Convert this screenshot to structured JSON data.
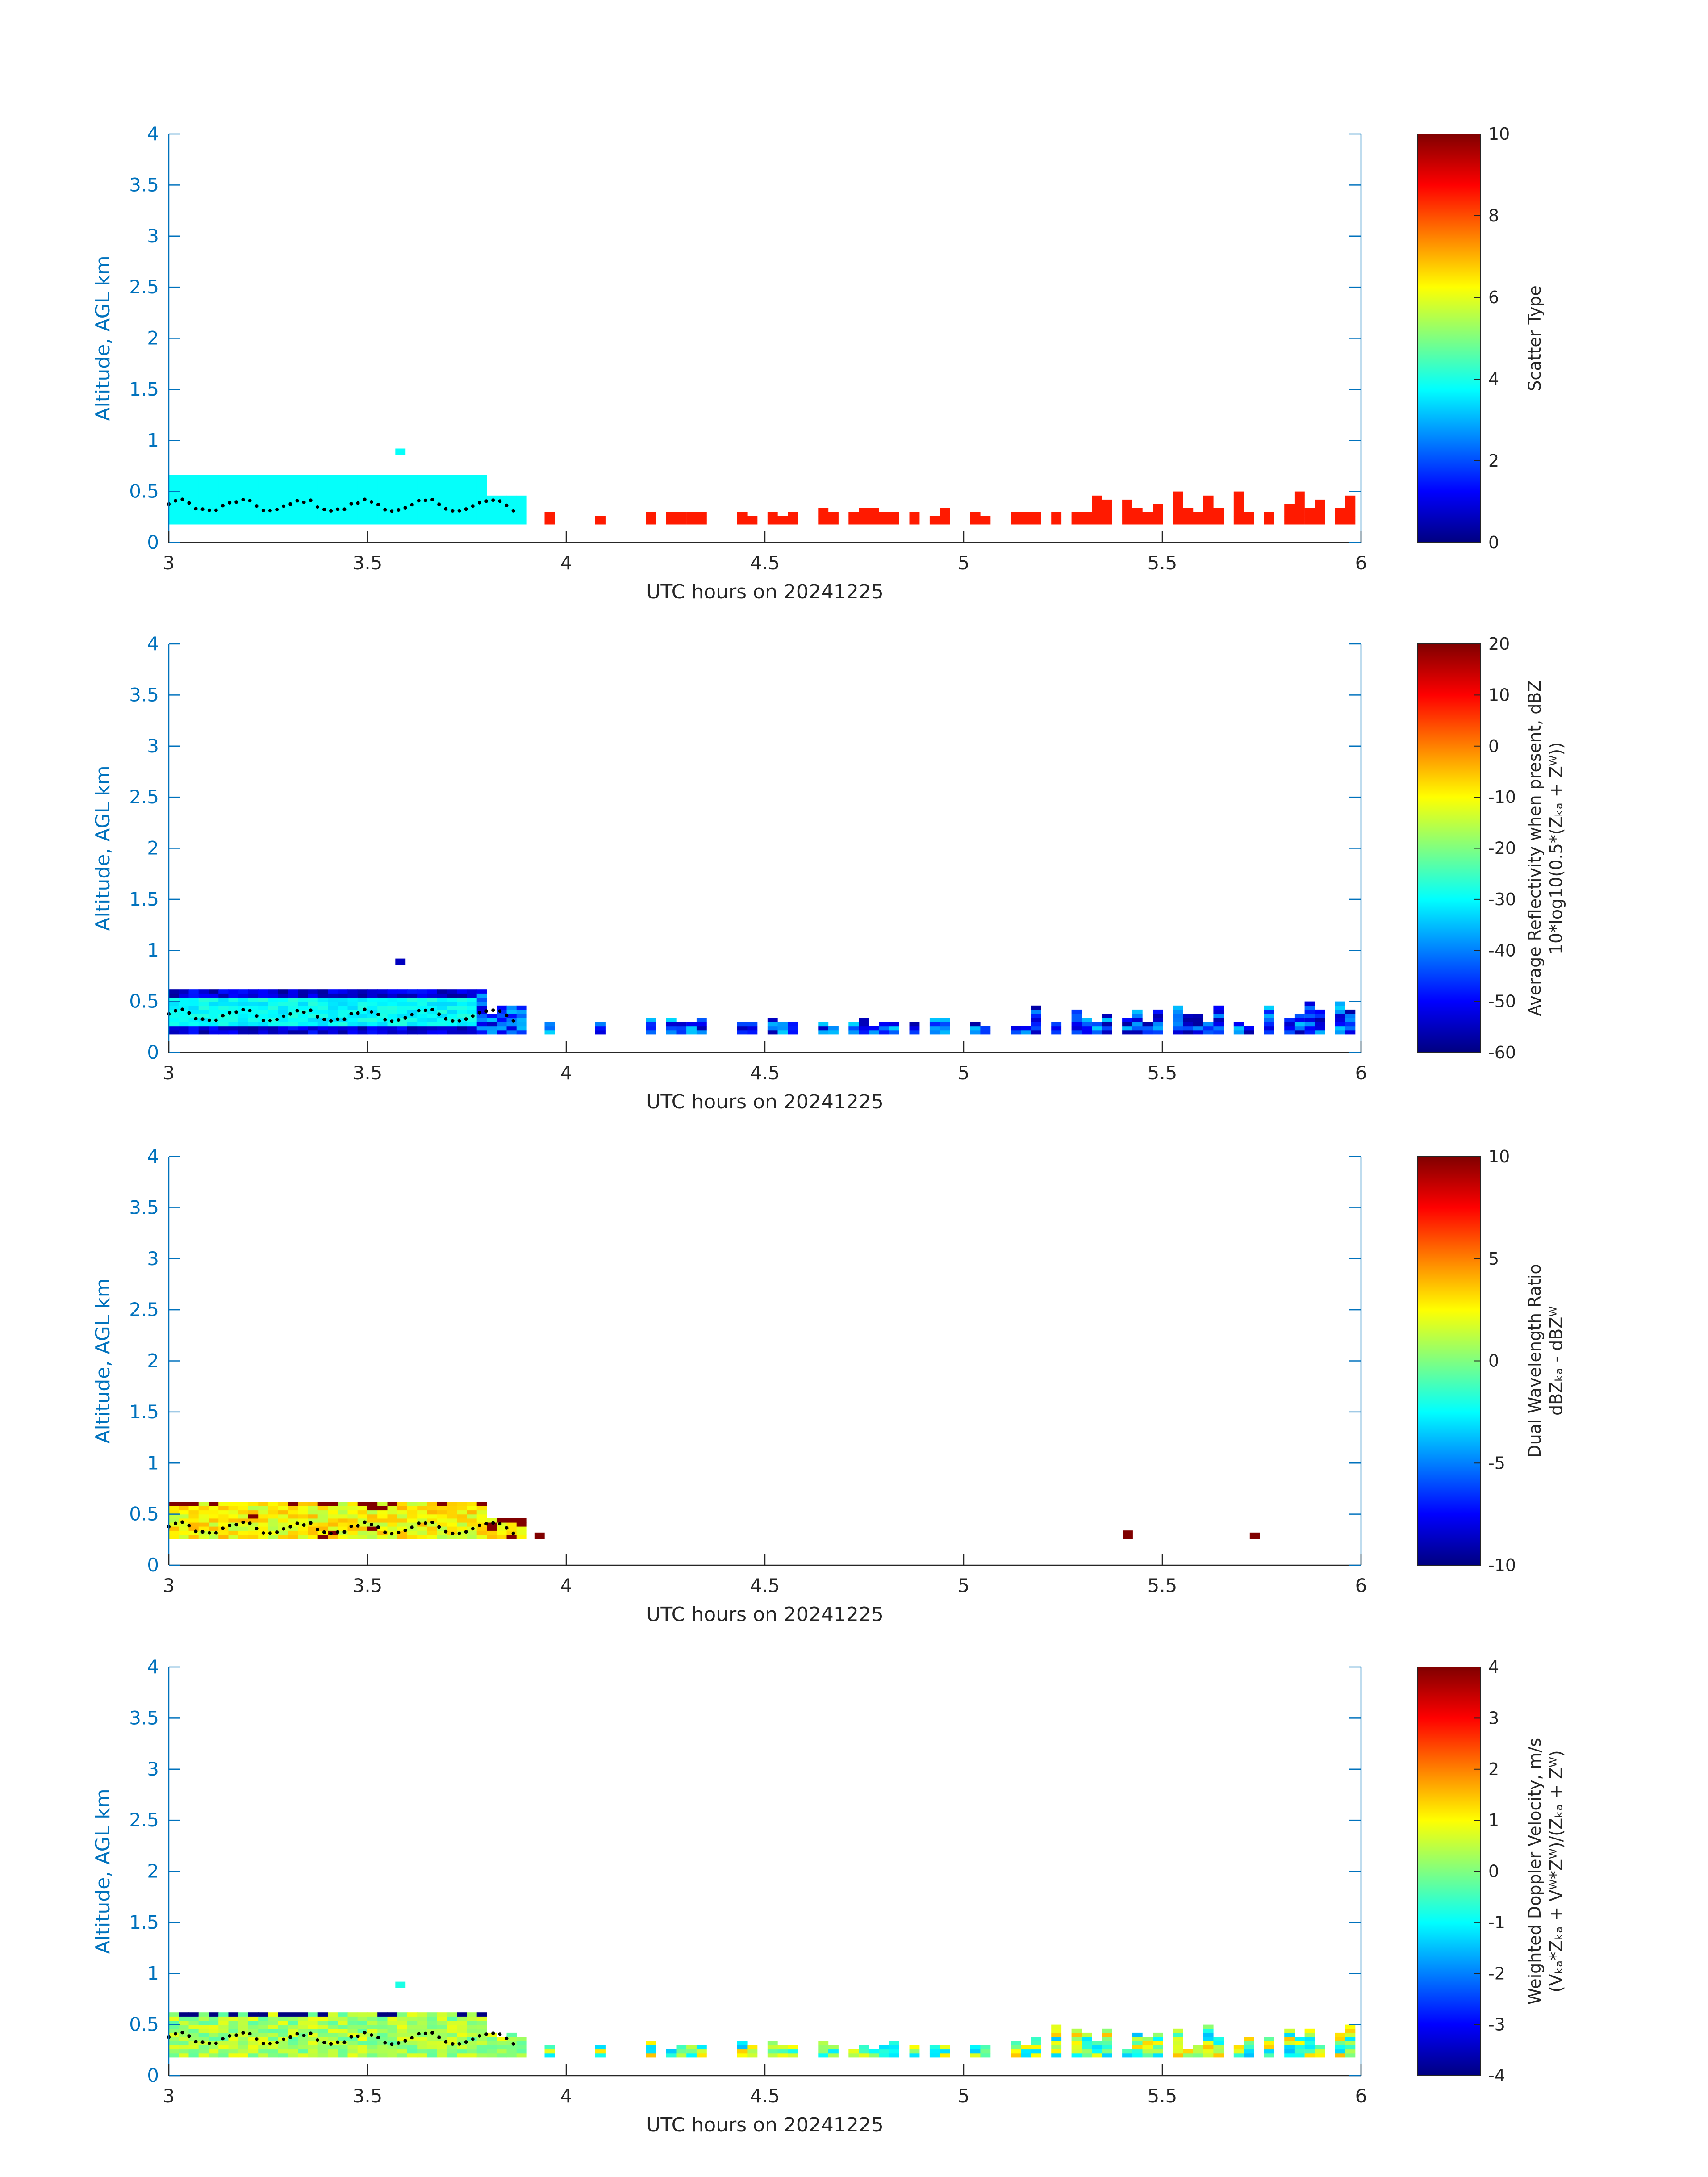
{
  "chart_data": [
    {
      "type": "heatmap",
      "xlabel": "UTC hours on 20241225",
      "ylabel": "Altitude, AGL km",
      "xlim": [
        3,
        6
      ],
      "ylim": [
        0,
        4
      ],
      "xticks": [
        "3",
        "3.5",
        "4",
        "4.5",
        "5",
        "5.5",
        "6"
      ],
      "yticks": [
        "0",
        "0.5",
        "1",
        "1.5",
        "2",
        "2.5",
        "3",
        "3.5",
        "4"
      ],
      "colorbar": {
        "label": [
          "Scatter Type"
        ],
        "min": 0,
        "max": 10,
        "ticks": [
          "0",
          "2",
          "4",
          "6",
          "8",
          "10"
        ]
      },
      "variable": "scatter_type",
      "cloud_top_km": 0.65,
      "values": {
        "dense_layer": 3.8,
        "sparse_returns": 8.5
      }
    },
    {
      "type": "heatmap",
      "xlabel": "UTC hours on 20241225",
      "ylabel": "Altitude, AGL km",
      "xlim": [
        3,
        6
      ],
      "ylim": [
        0,
        4
      ],
      "xticks": [
        "3",
        "3.5",
        "4",
        "4.5",
        "5",
        "5.5",
        "6"
      ],
      "yticks": [
        "0",
        "0.5",
        "1",
        "1.5",
        "2",
        "2.5",
        "3",
        "3.5",
        "4"
      ],
      "colorbar": {
        "label": [
          "Average Reflectivity when present, dBZ",
          "10*log10(0.5*(Zₖₐ + Zᵂ))"
        ],
        "min": -60,
        "max": 20,
        "ticks": [
          "-60",
          "-50",
          "-40",
          "-30",
          "-20",
          "-10",
          "0",
          "10",
          "20"
        ]
      },
      "variable": "reflectivity",
      "values": {
        "core": -33,
        "edge": -58,
        "sparse_mean": -50
      }
    },
    {
      "type": "heatmap",
      "xlabel": "UTC hours on 20241225",
      "ylabel": "Altitude, AGL km",
      "xlim": [
        3,
        6
      ],
      "ylim": [
        0,
        4
      ],
      "xticks": [
        "3",
        "3.5",
        "4",
        "4.5",
        "5",
        "5.5",
        "6"
      ],
      "yticks": [
        "0",
        "0.5",
        "1",
        "1.5",
        "2",
        "2.5",
        "3",
        "3.5",
        "4"
      ],
      "colorbar": {
        "label": [
          "Dual Wavelength Ratio",
          "dBZₖₐ - dBZᵂ"
        ],
        "min": -10,
        "max": 10,
        "ticks": [
          "-10",
          "-5",
          "0",
          "5",
          "10"
        ]
      },
      "variable": "dwr",
      "values": {
        "core": 2.5,
        "high": 10
      }
    },
    {
      "type": "heatmap",
      "xlabel": "UTC hours on 20241225",
      "ylabel": "Altitude, AGL km",
      "xlim": [
        3,
        6
      ],
      "ylim": [
        0,
        4
      ],
      "xticks": [
        "3",
        "3.5",
        "4",
        "4.5",
        "5",
        "5.5",
        "6"
      ],
      "yticks": [
        "0",
        "0.5",
        "1",
        "1.5",
        "2",
        "2.5",
        "3",
        "3.5",
        "4"
      ],
      "colorbar": {
        "label": [
          "Weighted Doppler Velocity, m/s",
          "(Vₖₐ*Zₖₐ + Vᵂ*Zᵂ)/(Zₖₐ + Zᵂ)"
        ],
        "min": -4,
        "max": 4,
        "ticks": [
          "-4",
          "-3",
          "-2",
          "-1",
          "0",
          "1",
          "2",
          "3",
          "4"
        ]
      },
      "variable": "doppler_velocity",
      "values": {
        "core": 0.3,
        "edge": -0.5
      }
    }
  ],
  "cloud_base_trace": {
    "color": "#000000",
    "mean_km": 0.36
  },
  "colors": {
    "axis": "#0072BD",
    "text": "#262626"
  }
}
